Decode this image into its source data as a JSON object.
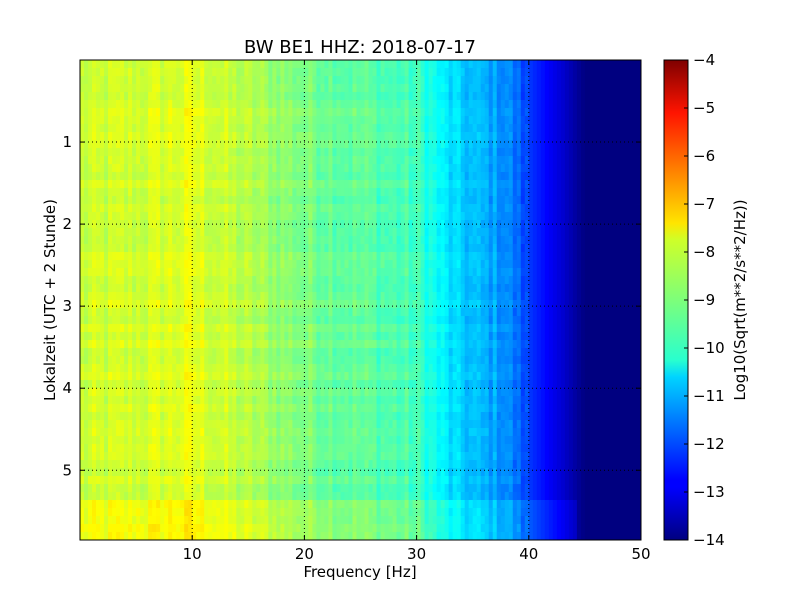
{
  "chart_data": {
    "type": "heatmap",
    "title": "BW BE1 HHZ: 2018-07-17",
    "xlabel": "Frequency [Hz]",
    "ylabel": "Lokalzeit (UTC + 2 Stunde)",
    "xlim": [
      0,
      50
    ],
    "ylim": [
      5.85,
      0.0
    ],
    "x_ticks": [
      10,
      20,
      30,
      40,
      50
    ],
    "y_ticks": [
      1,
      2,
      3,
      4,
      5
    ],
    "grid": true,
    "colormap": "jet",
    "colorbar": {
      "label": "Log10(Sqrt(m**2/s**2/Hz))",
      "range": [
        -14,
        -4
      ],
      "ticks": [
        -4,
        -5,
        -6,
        -7,
        -8,
        -9,
        -10,
        -11,
        -12,
        -13,
        -14
      ]
    },
    "profile_by_frequency": [
      {
        "freq": 0,
        "value": -8.3
      },
      {
        "freq": 5,
        "value": -8.2
      },
      {
        "freq": 10,
        "value": -8.0
      },
      {
        "freq": 15,
        "value": -8.5
      },
      {
        "freq": 20,
        "value": -9.0
      },
      {
        "freq": 25,
        "value": -9.3
      },
      {
        "freq": 30,
        "value": -9.6
      },
      {
        "freq": 33,
        "value": -10.6
      },
      {
        "freq": 35,
        "value": -10.9
      },
      {
        "freq": 38,
        "value": -11.3
      },
      {
        "freq": 40,
        "value": -12.2
      },
      {
        "freq": 43,
        "value": -13.2
      },
      {
        "freq": 45,
        "value": -14.0
      },
      {
        "freq": 50,
        "value": -14.0
      }
    ]
  }
}
